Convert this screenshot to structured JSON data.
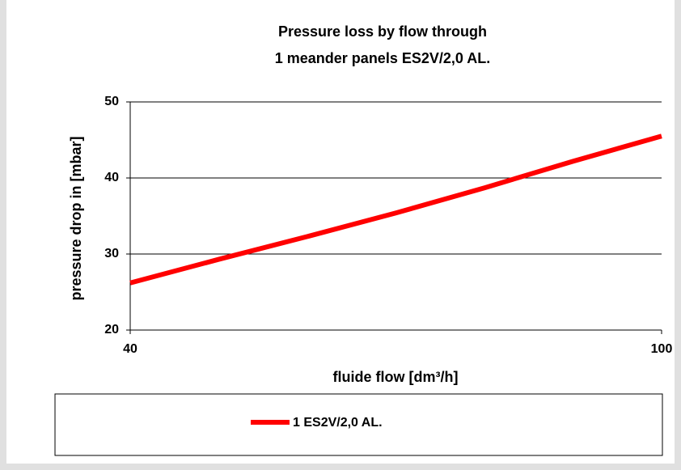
{
  "chart_data": {
    "type": "line",
    "title": [
      "Pressure loss by flow through",
      "1 meander panels ES2V/2,0 AL."
    ],
    "xlabel": "fluide flow [dm³/h]",
    "ylabel": "pressure drop in [mbar]",
    "x": [
      40,
      50,
      60,
      70,
      80,
      90,
      100
    ],
    "series": [
      {
        "name": "1 ES2V/2,0 AL.",
        "color": "#ff0000",
        "values": [
          26.2,
          29.3,
          32.3,
          35.4,
          38.7,
          42.2,
          45.5
        ]
      }
    ],
    "xlim": [
      40,
      100
    ],
    "xticks": [
      40,
      100
    ],
    "ylim": [
      20,
      50
    ],
    "yticks": [
      20,
      30,
      40,
      50
    ],
    "grid": true,
    "legend": "bottom"
  }
}
